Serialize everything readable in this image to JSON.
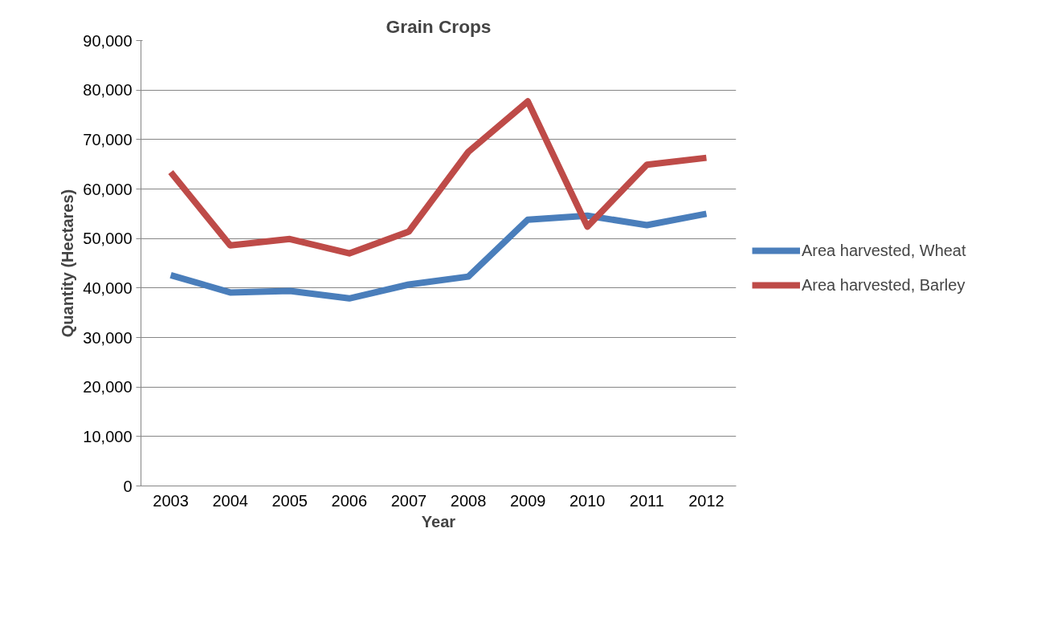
{
  "chart_data": {
    "type": "line",
    "title": "Grain Crops",
    "xlabel": "Year",
    "ylabel": "Quantity (Hectares)",
    "categories": [
      "2003",
      "2004",
      "2005",
      "2006",
      "2007",
      "2008",
      "2009",
      "2010",
      "2011",
      "2012"
    ],
    "series": [
      {
        "name": "Area harvested, Wheat",
        "color": "#4a7ebb",
        "values": [
          42600,
          39100,
          39400,
          37900,
          40700,
          42300,
          53800,
          54600,
          52700,
          55000
        ]
      },
      {
        "name": "Area harvested, Barley",
        "color": "#be4b48",
        "values": [
          63400,
          48600,
          49900,
          47000,
          51400,
          67500,
          77700,
          52400,
          64900,
          66300
        ]
      }
    ],
    "ylim": [
      0,
      90000
    ],
    "yticks": [
      0,
      {
        "value": 10000,
        "label": "10,000"
      },
      {
        "value": 20000,
        "label": "20,000"
      },
      {
        "value": 30000,
        "label": "30,000"
      },
      {
        "value": 40000,
        "label": "40,000"
      },
      {
        "value": 50000,
        "label": "50,000"
      },
      {
        "value": 60000,
        "label": "60,000"
      },
      {
        "value": 70000,
        "label": "70,000"
      },
      {
        "value": 80000,
        "label": "80,000"
      },
      {
        "value": 90000,
        "label": "90,000"
      }
    ],
    "grid": "y",
    "legend": "right",
    "line_style": "solid",
    "marker": "none"
  }
}
